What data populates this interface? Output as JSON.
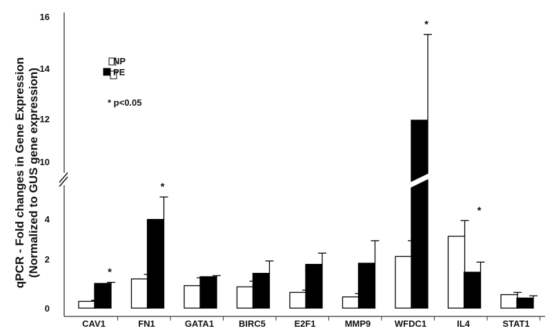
{
  "chart_data": {
    "type": "bar",
    "ylabel_line1": "qPCR - Fold changes in Gene Expression",
    "ylabel_line2": "(Normalized to GUS gene expression)",
    "categories": [
      "CAV1",
      "FN1",
      "GATA1",
      "BIRC5",
      "E2F1",
      "MMP9",
      "WFDC1",
      "IL4",
      "STAT1"
    ],
    "series": [
      {
        "name": "NP",
        "fill": "#ffffff",
        "values": [
          0.3,
          1.3,
          1.0,
          0.95,
          0.7,
          0.5,
          2.3,
          3.2,
          0.6
        ],
        "errors": [
          0.05,
          0.2,
          0.35,
          0.25,
          0.1,
          0.15,
          0.7,
          0.7,
          0.1
        ]
      },
      {
        "name": "PE",
        "fill": "#000000",
        "values": [
          1.1,
          3.95,
          1.4,
          1.55,
          1.95,
          2.0,
          11.7,
          1.6,
          0.45
        ],
        "errors": [
          0.05,
          1.0,
          0.05,
          0.55,
          0.5,
          1.0,
          3.4,
          0.45,
          0.1
        ]
      }
    ],
    "significant": [
      true,
      true,
      false,
      false,
      false,
      false,
      true,
      true,
      false
    ],
    "significance_label": "* p<0.05",
    "y_ticks_lower": [
      "0",
      "2",
      "4"
    ],
    "y_ticks_upper": [
      "10",
      "12",
      "14",
      "16"
    ],
    "axis_break": true,
    "ylim_lower": [
      0,
      5
    ],
    "ylim_upper": [
      10,
      16.5
    ],
    "legend_position": "top-left",
    "grid": false,
    "colors": {
      "axis": "#333333",
      "bar_outline": "#000000"
    }
  }
}
